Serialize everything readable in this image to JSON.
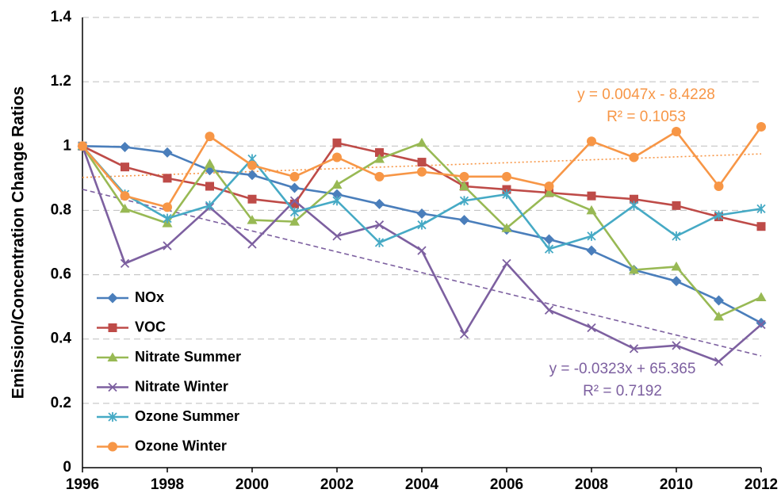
{
  "chart_data": {
    "type": "line",
    "ylabel": "Emission/Concentration Change Ratios",
    "x": [
      1996,
      1997,
      1998,
      1999,
      2000,
      2001,
      2002,
      2003,
      2004,
      2005,
      2006,
      2007,
      2008,
      2009,
      2010,
      2011,
      2012
    ],
    "xlim": [
      1996,
      2012
    ],
    "xticks": [
      1996,
      1998,
      2000,
      2002,
      2004,
      2006,
      2008,
      2010,
      2012
    ],
    "ylim": [
      0,
      1.4
    ],
    "yticks": [
      0,
      0.2,
      0.4,
      0.6,
      0.8,
      1,
      1.2,
      1.4
    ],
    "grid": true,
    "legend": "lower-left",
    "series": [
      {
        "name": "NOx",
        "color": "#4a7ebb",
        "marker": "diamond",
        "values": [
          1,
          0.997,
          0.98,
          0.925,
          0.91,
          0.87,
          0.85,
          0.82,
          0.79,
          0.77,
          0.74,
          0.71,
          0.675,
          0.615,
          0.58,
          0.52,
          0.45
        ]
      },
      {
        "name": "VOC",
        "color": "#be4b48",
        "marker": "square",
        "values": [
          1,
          0.935,
          0.9,
          0.875,
          0.835,
          0.82,
          1.01,
          0.98,
          0.95,
          0.875,
          0.865,
          0.855,
          0.845,
          0.835,
          0.815,
          0.78,
          0.75
        ]
      },
      {
        "name": "Nitrate Summer",
        "color": "#98b954",
        "marker": "triangle",
        "values": [
          1,
          0.805,
          0.76,
          0.945,
          0.77,
          0.765,
          0.88,
          0.96,
          1.01,
          0.875,
          0.745,
          0.855,
          0.8,
          0.615,
          0.625,
          0.47,
          0.53
        ]
      },
      {
        "name": "Nitrate Winter",
        "color": "#7d60a0",
        "marker": "x",
        "values": [
          1,
          0.635,
          0.69,
          0.81,
          0.695,
          0.83,
          0.72,
          0.755,
          0.675,
          0.415,
          0.635,
          0.49,
          0.435,
          0.37,
          0.38,
          0.33,
          0.445
        ],
        "trendline": {
          "equation": "y = -0.0323x + 65.365",
          "r2": "R² = 0.7192"
        }
      },
      {
        "name": "Ozone Summer",
        "color": "#46aac5",
        "marker": "star",
        "values": [
          1,
          0.85,
          0.775,
          0.815,
          0.96,
          0.795,
          0.83,
          0.7,
          0.755,
          0.83,
          0.85,
          0.68,
          0.72,
          0.815,
          0.72,
          0.785,
          0.805
        ]
      },
      {
        "name": "Ozone Winter",
        "color": "#f79646",
        "marker": "circle",
        "values": [
          1,
          0.845,
          0.81,
          1.03,
          0.94,
          0.905,
          0.965,
          0.905,
          0.92,
          0.905,
          0.905,
          0.875,
          1.015,
          0.965,
          1.045,
          0.875,
          1.06
        ],
        "trendline": {
          "equation": "y = 0.0047x - 8.4228",
          "r2": "R² = 0.1053"
        }
      }
    ]
  }
}
